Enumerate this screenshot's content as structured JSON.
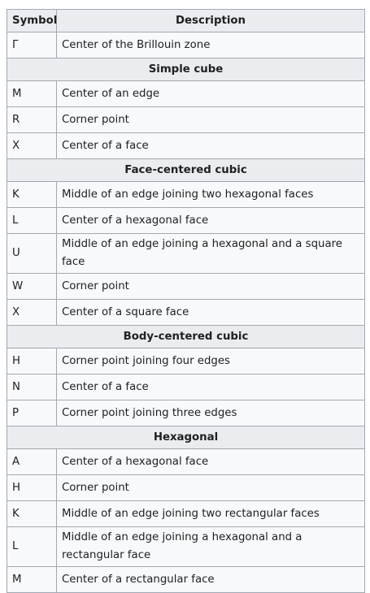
{
  "header": {
    "symbol": "Symbol",
    "description": "Description"
  },
  "rows": [
    {
      "type": "row",
      "symbol": "Γ",
      "description": "Center of the Brillouin zone"
    },
    {
      "type": "section",
      "title": "Simple cube"
    },
    {
      "type": "row",
      "symbol": "M",
      "description": "Center of an edge"
    },
    {
      "type": "row",
      "symbol": "R",
      "description": "Corner point"
    },
    {
      "type": "row",
      "symbol": "X",
      "description": "Center of a face"
    },
    {
      "type": "section",
      "title": "Face-centered cubic"
    },
    {
      "type": "row",
      "symbol": "K",
      "description": "Middle of an edge joining two hexagonal faces"
    },
    {
      "type": "row",
      "symbol": "L",
      "description": "Center of a hexagonal face"
    },
    {
      "type": "row",
      "symbol": "U",
      "description": "Middle of an edge joining a hexagonal and a square face"
    },
    {
      "type": "row",
      "symbol": "W",
      "description": "Corner point"
    },
    {
      "type": "row",
      "symbol": "X",
      "description": "Center of a square face"
    },
    {
      "type": "section",
      "title": "Body-centered cubic"
    },
    {
      "type": "row",
      "symbol": "H",
      "description": "Corner point joining four edges"
    },
    {
      "type": "row",
      "symbol": "N",
      "description": "Center of a face"
    },
    {
      "type": "row",
      "symbol": "P",
      "description": "Corner point joining three edges"
    },
    {
      "type": "section",
      "title": "Hexagonal"
    },
    {
      "type": "row",
      "symbol": "A",
      "description": "Center of a hexagonal face"
    },
    {
      "type": "row",
      "symbol": "H",
      "description": "Corner point"
    },
    {
      "type": "row",
      "symbol": "K",
      "description": "Middle of an edge joining two rectangular faces"
    },
    {
      "type": "row",
      "symbol": "L",
      "description": "Middle of an edge joining a hexagonal and a rectangular face"
    },
    {
      "type": "row",
      "symbol": "M",
      "description": "Center of a rectangular face"
    }
  ]
}
